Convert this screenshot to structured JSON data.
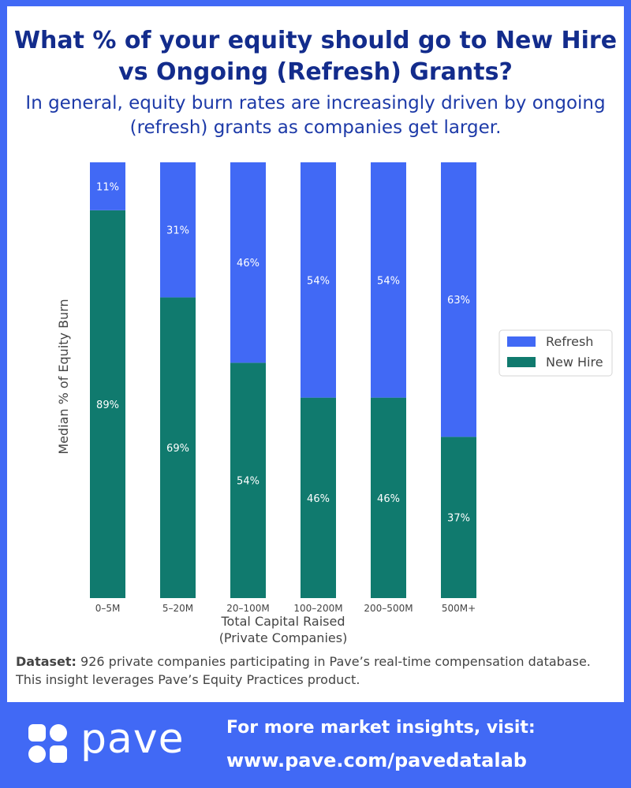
{
  "header": {
    "title": "What % of your equity should go to New Hire vs Ongoing (Refresh) Grants?",
    "subtitle": "In general, equity burn rates are increasingly driven by ongoing (refresh) grants as companies get larger."
  },
  "chart_data": {
    "type": "bar",
    "stacked": true,
    "categories": [
      "0–5M",
      "5–20M",
      "20–100M",
      "100–200M",
      "200–500M",
      "500M+"
    ],
    "series": [
      {
        "name": "New Hire",
        "values": [
          89,
          69,
          54,
          46,
          46,
          37
        ],
        "labels": [
          "89%",
          "69%",
          "54%",
          "46%",
          "46%",
          "37%"
        ],
        "color": "#107a6e"
      },
      {
        "name": "Refresh",
        "values": [
          11,
          31,
          46,
          54,
          54,
          63
        ],
        "labels": [
          "11%",
          "31%",
          "46%",
          "54%",
          "54%",
          "63%"
        ],
        "color": "#4169f5"
      }
    ],
    "xlabel": "Total Capital Raised\n(Private Companies)",
    "ylabel": "Median % of Equity Burn",
    "ylim": [
      0,
      100
    ],
    "legend": {
      "placement": "right",
      "entries": [
        "Refresh",
        "New Hire"
      ]
    },
    "grid": false
  },
  "dataset_note": {
    "label": "Dataset:",
    "text": " 926 private companies participating in Pave’s real-time compensation database. This insight leverages Pave’s Equity Practices product."
  },
  "footer": {
    "logo_text": "pave",
    "cta_line1": "For more market insights, visit:",
    "cta_line2": "www.pave.com/pavedatalab",
    "background": "#4169f5"
  }
}
